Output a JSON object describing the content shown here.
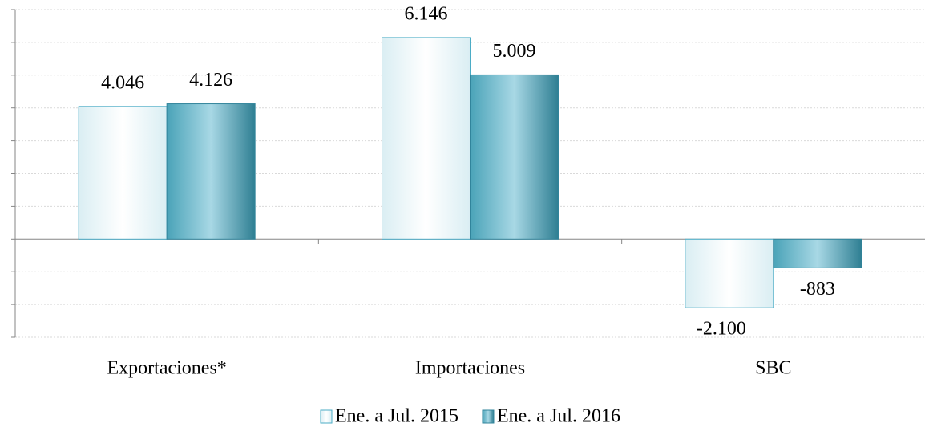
{
  "chart_data": {
    "type": "bar",
    "categories": [
      "Exportaciones*",
      "Importaciones",
      "SBC"
    ],
    "series": [
      {
        "name": "Ene. a Jul. 2015",
        "color": "#daeef3",
        "values": [
          4046,
          6146,
          -2100
        ],
        "value_labels": [
          "4.046",
          "6.146",
          "-2.100"
        ]
      },
      {
        "name": "Ene. a Jul. 2016",
        "color": "#4aa3b8",
        "values": [
          4126,
          5009,
          -883
        ],
        "value_labels": [
          "4.126",
          "5.009",
          "-883"
        ]
      }
    ],
    "ylim": [
      -3000,
      7000
    ],
    "yticks": [
      -3000,
      -2000,
      -1000,
      0,
      1000,
      2000,
      3000,
      4000,
      5000,
      6000,
      7000
    ],
    "grid": true,
    "legend": "bottom"
  }
}
